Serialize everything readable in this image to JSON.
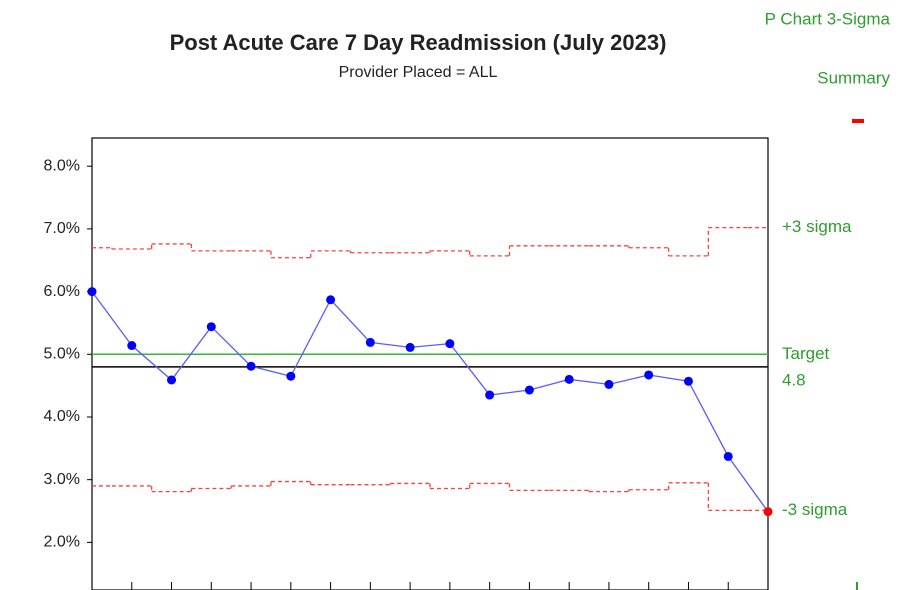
{
  "chart_data": {
    "type": "line",
    "title": "Post Acute Care 7 Day Readmission (July 2023)",
    "subtitle": "Provider Placed = ALL",
    "chart_kind": "P Chart 3-Sigma",
    "summary_label": "Summary",
    "categories": [
      null,
      null,
      null,
      null,
      null,
      null,
      null,
      null,
      null,
      null,
      null,
      null,
      null,
      null,
      null,
      null,
      null,
      null
    ],
    "values": [
      6.0,
      5.14,
      4.59,
      5.44,
      4.81,
      4.65,
      5.87,
      5.19,
      5.11,
      5.17,
      4.35,
      4.43,
      4.6,
      4.52,
      4.67,
      4.57,
      3.37,
      2.49
    ],
    "color": "#0000ff",
    "line_color": "#5a5aff",
    "out_of_control_color": "#ff0000",
    "ucl": {
      "label": "+3 sigma",
      "color": "#ff4040",
      "values": [
        6.7,
        6.68,
        6.76,
        6.65,
        6.65,
        6.54,
        6.65,
        6.62,
        6.62,
        6.65,
        6.57,
        6.73,
        6.73,
        6.73,
        6.7,
        6.57,
        7.02,
        7.02
      ]
    },
    "lcl": {
      "label": "-3 sigma",
      "color": "#ff4040",
      "values": [
        2.9,
        2.9,
        2.81,
        2.86,
        2.9,
        2.97,
        2.92,
        2.92,
        2.94,
        2.86,
        2.94,
        2.83,
        2.83,
        2.81,
        2.84,
        2.95,
        2.51,
        2.51
      ]
    },
    "target": {
      "label": "Target",
      "value": 5.0,
      "color": "#33bb33"
    },
    "mean": {
      "value": 4.8,
      "color": "#000000"
    },
    "ylim": [
      1.4,
      8.45
    ],
    "yticks": [
      {
        "value": 2,
        "label": "2.0%"
      },
      {
        "value": 3,
        "label": "3.0%"
      },
      {
        "value": 4,
        "label": "4.0%"
      },
      {
        "value": 5,
        "label": "5.0%"
      },
      {
        "value": 6,
        "label": "6.0%"
      },
      {
        "value": 7,
        "label": "7.0%"
      },
      {
        "value": 8,
        "label": "8.0%"
      }
    ]
  }
}
